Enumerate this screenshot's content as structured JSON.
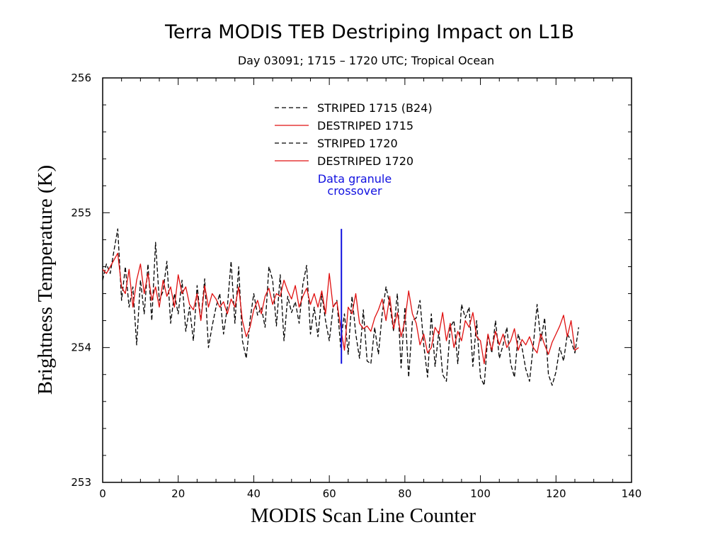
{
  "chart_data": {
    "type": "line",
    "title": "Terra MODIS TEB Destriping Impact on L1B",
    "subtitle": "Day 03091; 1715 – 1720 UTC; Tropical Ocean",
    "xlabel": "MODIS Scan Line Counter",
    "ylabel": "Brightness Temperature (K)",
    "xlim": [
      0,
      140
    ],
    "ylim": [
      253,
      256
    ],
    "xticks": [
      0,
      20,
      40,
      60,
      80,
      100,
      120,
      140
    ],
    "yticks": [
      253,
      254,
      255,
      256
    ],
    "legend_position": "top-center",
    "annotation": {
      "lines": [
        "Data granule",
        "crossover"
      ],
      "x": 63.2,
      "y_range": [
        253.88,
        254.88
      ],
      "color": "#1010e0"
    },
    "series": [
      {
        "name": "STRIPED 1715 (B24)",
        "color": "#000000",
        "style": "dashed",
        "x": [
          0,
          1,
          2,
          3,
          4,
          5,
          6,
          7,
          8,
          9,
          10,
          11,
          12,
          13,
          14,
          15,
          16,
          17,
          18,
          19,
          20,
          21,
          22,
          23,
          24,
          25,
          26,
          27,
          28,
          29,
          30,
          31,
          32,
          33,
          34,
          35,
          36,
          37,
          38,
          39,
          40,
          41,
          42,
          43,
          44,
          45,
          46,
          47,
          48,
          49,
          50,
          51,
          52,
          53,
          54,
          55,
          56,
          57,
          58,
          59,
          60,
          61,
          62,
          63
        ],
        "y": [
          254.5,
          254.62,
          254.55,
          254.72,
          254.88,
          254.35,
          254.6,
          254.3,
          254.45,
          254.02,
          254.5,
          254.25,
          254.62,
          254.2,
          254.78,
          254.35,
          254.42,
          254.64,
          254.18,
          254.4,
          254.25,
          254.5,
          254.12,
          254.3,
          254.05,
          254.46,
          254.2,
          254.51,
          254.0,
          254.16,
          254.3,
          254.4,
          254.1,
          254.3,
          254.64,
          254.18,
          254.6,
          254.05,
          253.92,
          254.2,
          254.4,
          254.24,
          254.3,
          254.15,
          254.6,
          254.5,
          254.16,
          254.54,
          254.05,
          254.38,
          254.26,
          254.34,
          254.18,
          254.47,
          254.61,
          254.1,
          254.3,
          254.08,
          254.4,
          254.2,
          254.05,
          254.3,
          254.35,
          254.0
        ]
      },
      {
        "name": "DESTRIPED 1715",
        "color": "#e01010",
        "style": "solid",
        "x": [
          0,
          1,
          2,
          3,
          4,
          5,
          6,
          7,
          8,
          9,
          10,
          11,
          12,
          13,
          14,
          15,
          16,
          17,
          18,
          19,
          20,
          21,
          22,
          23,
          24,
          25,
          26,
          27,
          28,
          29,
          30,
          31,
          32,
          33,
          34,
          35,
          36,
          37,
          38,
          39,
          40,
          41,
          42,
          43,
          44,
          45,
          46,
          47,
          48,
          49,
          50,
          51,
          52,
          53,
          54,
          55,
          56,
          57,
          58,
          59,
          60,
          61,
          62,
          63
        ],
        "y": [
          254.58,
          254.55,
          254.6,
          254.65,
          254.7,
          254.45,
          254.4,
          254.58,
          254.3,
          254.5,
          254.62,
          254.4,
          254.55,
          254.35,
          254.45,
          254.3,
          254.5,
          254.38,
          254.45,
          254.3,
          254.54,
          254.4,
          254.45,
          254.32,
          254.28,
          254.4,
          254.2,
          254.46,
          254.3,
          254.4,
          254.36,
          254.3,
          254.34,
          254.25,
          254.36,
          254.3,
          254.45,
          254.2,
          254.08,
          254.15,
          254.28,
          254.35,
          254.25,
          254.38,
          254.44,
          254.32,
          254.4,
          254.38,
          254.5,
          254.42,
          254.36,
          254.46,
          254.3,
          254.38,
          254.44,
          254.32,
          254.4,
          254.3,
          254.42,
          254.25,
          254.55,
          254.3,
          254.34,
          254.15
        ]
      },
      {
        "name": "STRIPED 1720",
        "color": "#000000",
        "style": "dashed",
        "x": [
          63,
          64,
          65,
          66,
          67,
          68,
          69,
          70,
          71,
          72,
          73,
          74,
          75,
          76,
          77,
          78,
          79,
          80,
          81,
          82,
          83,
          84,
          85,
          86,
          87,
          88,
          89,
          90,
          91,
          92,
          93,
          94,
          95,
          96,
          97,
          98,
          99,
          100,
          101,
          102,
          103,
          104,
          105,
          106,
          107,
          108,
          109,
          110,
          111,
          112,
          113,
          114,
          115,
          116,
          117,
          118,
          119,
          120,
          121,
          122,
          123,
          124,
          125,
          126
        ],
        "y": [
          254.05,
          254.25,
          253.95,
          254.38,
          254.1,
          253.92,
          254.28,
          253.9,
          253.88,
          254.15,
          253.95,
          254.25,
          254.45,
          254.32,
          254.12,
          254.4,
          253.85,
          254.3,
          253.78,
          254.2,
          254.22,
          254.35,
          254.02,
          253.78,
          254.25,
          253.86,
          254.12,
          253.8,
          253.75,
          254.15,
          254.2,
          253.88,
          254.32,
          254.22,
          254.3,
          253.86,
          254.2,
          253.78,
          253.72,
          254.1,
          253.96,
          254.2,
          253.92,
          254.02,
          254.15,
          253.88,
          253.78,
          254.1,
          254.0,
          253.84,
          253.75,
          254.02,
          254.32,
          254.05,
          254.22,
          253.8,
          253.72,
          253.82,
          254.0,
          253.9,
          254.1,
          254.05,
          253.96,
          254.15
        ]
      },
      {
        "name": "DESTRIPED 1720",
        "color": "#e01010",
        "style": "solid",
        "x": [
          63,
          64,
          65,
          66,
          67,
          68,
          69,
          70,
          71,
          72,
          73,
          74,
          75,
          76,
          77,
          78,
          79,
          80,
          81,
          82,
          83,
          84,
          85,
          86,
          87,
          88,
          89,
          90,
          91,
          92,
          93,
          94,
          95,
          96,
          97,
          98,
          99,
          100,
          101,
          102,
          103,
          104,
          105,
          106,
          107,
          108,
          109,
          110,
          111,
          112,
          113,
          114,
          115,
          116,
          117,
          118,
          119,
          120,
          121,
          122,
          123,
          124,
          125,
          126
        ],
        "y": [
          254.15,
          253.98,
          254.3,
          254.25,
          254.4,
          254.18,
          254.14,
          254.16,
          254.12,
          254.22,
          254.28,
          254.36,
          254.2,
          254.38,
          254.14,
          254.26,
          254.08,
          254.2,
          254.42,
          254.25,
          254.18,
          254.02,
          254.1,
          253.96,
          254.0,
          254.15,
          254.1,
          254.26,
          254.05,
          254.18,
          254.0,
          254.12,
          254.05,
          254.2,
          254.15,
          254.26,
          254.08,
          254.05,
          253.88,
          254.1,
          253.98,
          254.12,
          254.02,
          254.1,
          254.0,
          254.05,
          254.14,
          253.98,
          254.06,
          254.02,
          254.08,
          254.0,
          253.96,
          254.1,
          254.02,
          253.95,
          254.04,
          254.1,
          254.16,
          254.24,
          254.08,
          254.2,
          253.98,
          254.0
        ]
      }
    ]
  }
}
